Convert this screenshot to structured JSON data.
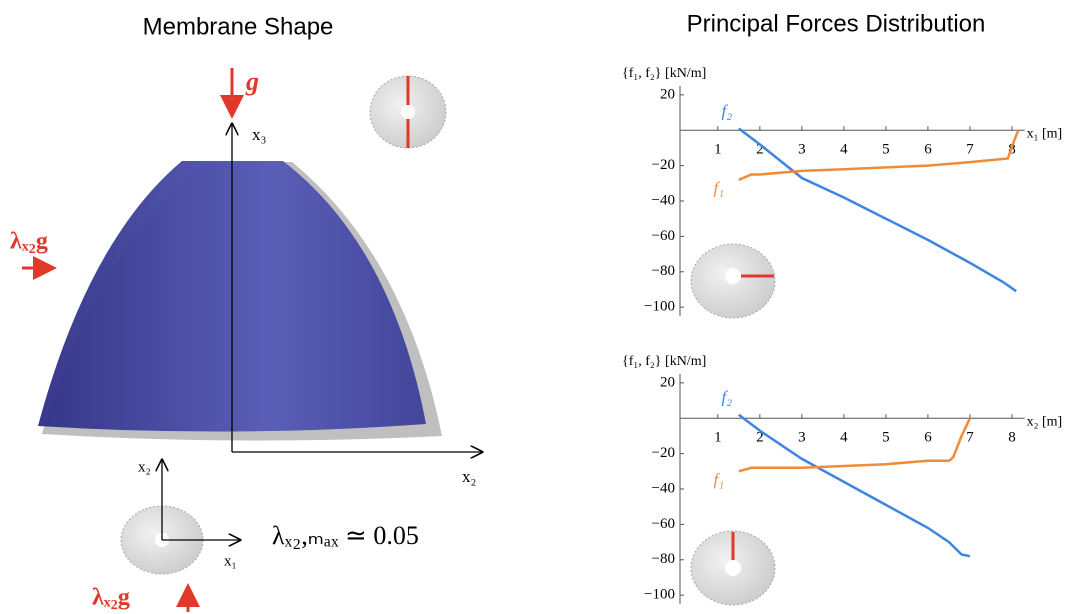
{
  "diagram": {
    "title": "Membrane Shape",
    "load_label": "g",
    "axis_x3": "x₃",
    "axis_x2": "x₂",
    "side_load_label": "λₓ₂g",
    "plan_axis_x2": "x₂",
    "plan_axis_x1": "x₁",
    "bottom_load_label": "λₓ₂g",
    "result": "λₓ₂,ₘₐₓ ≃ 0.05"
  },
  "title": "Principal Forces Distribution",
  "chart_data": [
    {
      "type": "line",
      "y_label": "{f₁, f₂} [kN/m]",
      "x_label": "x₁ [m]",
      "xlim": [
        0.1,
        8.3
      ],
      "ylim": [
        -105,
        25
      ],
      "xticks": [
        1,
        2,
        3,
        4,
        5,
        6,
        7,
        8
      ],
      "yticks": [
        20,
        {
          "value": -20,
          "label": "−20"
        },
        {
          "value": -40,
          "label": "−40"
        },
        {
          "value": -60,
          "label": "−60"
        },
        {
          "value": -80,
          "label": "−80"
        },
        {
          "value": -100,
          "label": "−100"
        }
      ],
      "series": [
        {
          "name": "f₂",
          "color": "#3d86e0",
          "x": [
            1.5,
            2,
            3,
            4,
            5,
            6,
            7,
            7.8,
            8.1
          ],
          "values": [
            1,
            -8,
            -27,
            -38,
            -50,
            -62,
            -75,
            -86,
            -91
          ]
        },
        {
          "name": "f₁",
          "color": "#ef8c3a",
          "x": [
            1.5,
            1.8,
            2,
            3,
            4,
            5,
            6,
            7,
            7.9,
            8.05,
            8.15
          ],
          "values": [
            -28,
            -25,
            -25,
            -23,
            -22,
            -21,
            -20,
            -18,
            -16,
            -6,
            0
          ]
        }
      ]
    },
    {
      "type": "line",
      "y_label": "{f₁, f₂} [kN/m]",
      "x_label": "x₂ [m]",
      "xlim": [
        0.1,
        8.3
      ],
      "ylim": [
        -105,
        25
      ],
      "xticks": [
        1,
        2,
        3,
        4,
        5,
        6,
        7,
        8
      ],
      "yticks": [
        20,
        {
          "value": -20,
          "label": "−20"
        },
        {
          "value": -40,
          "label": "−40"
        },
        {
          "value": -60,
          "label": "−60"
        },
        {
          "value": -80,
          "label": "−80"
        },
        {
          "value": -100,
          "label": "−100"
        }
      ],
      "series": [
        {
          "name": "f₂",
          "color": "#3d86e0",
          "x": [
            1.5,
            2,
            3,
            4,
            5,
            6,
            6.5,
            6.8,
            7
          ],
          "values": [
            2,
            -7,
            -23,
            -36,
            -49,
            -62,
            -70,
            -77,
            -78
          ]
        },
        {
          "name": "f₁",
          "color": "#ef8c3a",
          "x": [
            1.5,
            1.8,
            2,
            3,
            4,
            5,
            6,
            6.5,
            6.6,
            6.8,
            7
          ],
          "values": [
            -30,
            -28,
            -28,
            -28,
            -27,
            -26,
            -24,
            -24,
            -22,
            -10,
            0
          ]
        }
      ]
    }
  ]
}
